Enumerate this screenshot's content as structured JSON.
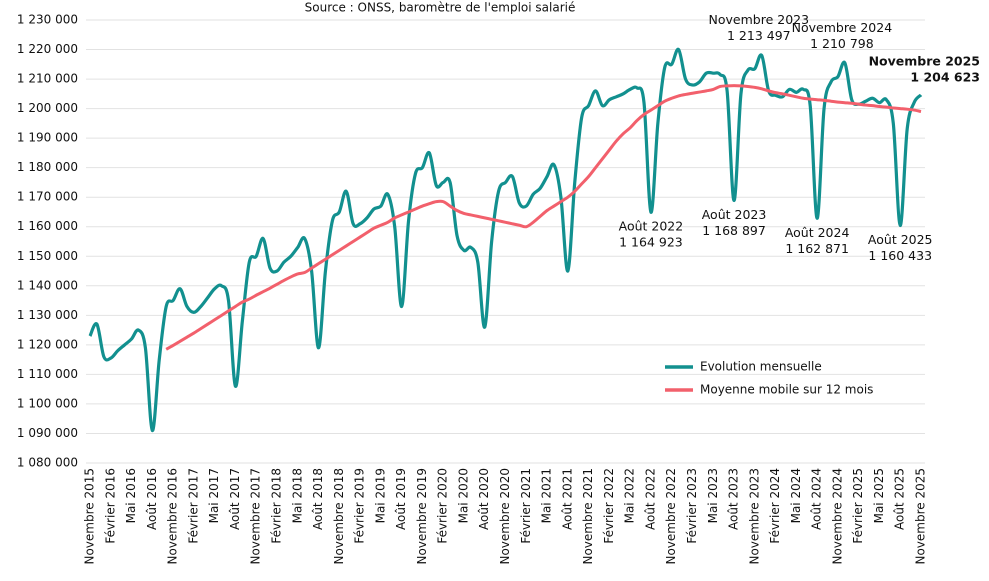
{
  "chart_data": {
    "type": "line",
    "subtitle": "Source : ONSS, baromètre de l'emploi salarié",
    "categories": [
      "Novembre 2015",
      null,
      null,
      "Février 2016",
      null,
      null,
      "Mai 2016",
      null,
      null,
      "Août 2016",
      null,
      null,
      "Novembre 2016",
      null,
      null,
      "Février 2017",
      null,
      null,
      "Mai 2017",
      null,
      null,
      "Août 2017",
      null,
      null,
      "Novembre 2017",
      null,
      null,
      "Février 2018",
      null,
      null,
      "Mai 2018",
      null,
      null,
      "Août 2018",
      null,
      null,
      "Novembre 2018",
      null,
      null,
      "Février 2019",
      null,
      null,
      "Mai 2019",
      null,
      null,
      "Août 2019",
      null,
      null,
      "Novembre 2019",
      null,
      null,
      "Février 2020",
      null,
      null,
      "Mai 2020",
      null,
      null,
      "Août 2020",
      null,
      null,
      "Novembre 2020",
      null,
      null,
      "Février 2021",
      null,
      null,
      "Mai 2021",
      null,
      null,
      "Août 2021",
      null,
      null,
      "Novembre 2021",
      null,
      null,
      "Février 2022",
      null,
      null,
      "Mai 2022",
      null,
      null,
      "Août 2022",
      null,
      null,
      "Novembre 2022",
      null,
      null,
      "Février 2023",
      null,
      null,
      "Mai 2023",
      null,
      null,
      "Août 2023",
      null,
      null,
      "Novembre 2023",
      null,
      null,
      "Février 2024",
      null,
      null,
      "Mai 2024",
      null,
      null,
      "Août 2024",
      null,
      null,
      "Novembre 2024",
      null,
      null,
      "Février 2025",
      null,
      null,
      "Mai 2025",
      null,
      null,
      "Août 2025",
      null,
      null,
      "Novembre 2025"
    ],
    "series": [
      {
        "name": "Evolution mensuelle",
        "color": "#12908f",
        "values": [
          1123000,
          1127000,
          1116000,
          1115500,
          1118000,
          1120000,
          1122000,
          1125000,
          1119000,
          1091000,
          1115000,
          1133000,
          1135000,
          1139000,
          1133000,
          1131000,
          1133000,
          1136000,
          1139000,
          1140000,
          1135000,
          1106000,
          1128000,
          1148000,
          1150000,
          1156000,
          1146000,
          1145000,
          1148000,
          1150000,
          1153000,
          1156000,
          1145000,
          1119000,
          1145000,
          1162000,
          1165000,
          1172000,
          1161000,
          1161000,
          1163000,
          1166000,
          1167000,
          1171000,
          1160000,
          1133000,
          1162000,
          1178000,
          1180000,
          1185000,
          1174000,
          1175000,
          1175000,
          1157000,
          1152000,
          1153000,
          1148000,
          1126000,
          1155000,
          1172000,
          1175000,
          1177000,
          1168000,
          1167000,
          1171000,
          1173000,
          1177000,
          1181000,
          1170000,
          1145000,
          1175000,
          1197000,
          1201000,
          1206000,
          1201000,
          1203000,
          1204000,
          1205000,
          1206500,
          1207000,
          1202000,
          1164923,
          1195000,
          1214000,
          1215000,
          1220000,
          1210000,
          1208000,
          1209000,
          1212000,
          1212000,
          1211500,
          1206000,
          1168897,
          1205000,
          1213000,
          1213497,
          1218000,
          1206000,
          1204500,
          1204000,
          1206500,
          1205500,
          1206500,
          1201000,
          1162871,
          1200000,
          1209000,
          1210798,
          1215500,
          1203000,
          1201500,
          1202500,
          1203500,
          1202000,
          1203000,
          1195000,
          1160433,
          1193000,
          1202000,
          1204623
        ],
        "point_labels": [
          null,
          null,
          null,
          null,
          null,
          null,
          null,
          null,
          null,
          null,
          null,
          null,
          null,
          null,
          null,
          null,
          null,
          null,
          null,
          null,
          null,
          null,
          null,
          null,
          null,
          null,
          null,
          null,
          null,
          null,
          null,
          null,
          null,
          null,
          null,
          null,
          null,
          null,
          null,
          null,
          null,
          null,
          null,
          null,
          null,
          null,
          null,
          null,
          null,
          null,
          null,
          null,
          null,
          null,
          null,
          null,
          null,
          null,
          null,
          null,
          null,
          null,
          null,
          null,
          null,
          null,
          null,
          null,
          null,
          null,
          null,
          null,
          null,
          null,
          null,
          null,
          null,
          null,
          null,
          null,
          null,
          "Août 2022",
          null,
          null,
          null,
          null,
          null,
          null,
          null,
          null,
          null,
          null,
          null,
          "Août 2023",
          null,
          null,
          "Novembre 2023",
          null,
          null,
          null,
          null,
          null,
          null,
          null,
          null,
          "Août 2024",
          null,
          null,
          "Novembre 2024",
          null,
          null,
          null,
          null,
          null,
          null,
          null,
          null,
          "Août 2025",
          null,
          null,
          "Novembre 2025"
        ],
        "value_labels": [
          null,
          null,
          null,
          null,
          null,
          null,
          null,
          null,
          null,
          null,
          null,
          null,
          null,
          null,
          null,
          null,
          null,
          null,
          null,
          null,
          null,
          null,
          null,
          null,
          null,
          null,
          null,
          null,
          null,
          null,
          null,
          null,
          null,
          null,
          null,
          null,
          null,
          null,
          null,
          null,
          null,
          null,
          null,
          null,
          null,
          null,
          null,
          null,
          null,
          null,
          null,
          null,
          null,
          null,
          null,
          null,
          null,
          null,
          null,
          null,
          null,
          null,
          null,
          null,
          null,
          null,
          null,
          null,
          null,
          null,
          null,
          null,
          null,
          null,
          null,
          null,
          null,
          null,
          null,
          null,
          null,
          "1 164 923",
          null,
          null,
          null,
          null,
          null,
          null,
          null,
          null,
          null,
          null,
          null,
          "1 168 897",
          null,
          null,
          "1 213 497",
          null,
          null,
          null,
          null,
          null,
          null,
          null,
          null,
          "1 162 871",
          null,
          null,
          "1 210 798",
          null,
          null,
          null,
          null,
          null,
          null,
          null,
          null,
          "1 160 433",
          null,
          null,
          "1 204 623"
        ]
      },
      {
        "name": "Moyenne mobile sur 12 mois",
        "color": "#f2606c",
        "values": [
          null,
          null,
          null,
          null,
          null,
          null,
          null,
          null,
          null,
          null,
          null,
          1118500,
          1119800,
          1121200,
          1122600,
          1124000,
          1125500,
          1127000,
          1128500,
          1130000,
          1131500,
          1133000,
          1134500,
          1135500,
          1136800,
          1138000,
          1139200,
          1140500,
          1141800,
          1143000,
          1144000,
          1144500,
          1146000,
          1147500,
          1149000,
          1150500,
          1152000,
          1153500,
          1155000,
          1156500,
          1158000,
          1159500,
          1160500,
          1161500,
          1163000,
          1164000,
          1165000,
          1166000,
          1167000,
          1167800,
          1168500,
          1168500,
          1167000,
          1165500,
          1164500,
          1164000,
          1163500,
          1163000,
          1162500,
          1162000,
          1161500,
          1161000,
          1160500,
          1160000,
          1161500,
          1163500,
          1165500,
          1167000,
          1168500,
          1170000,
          1172000,
          1174500,
          1177000,
          1180000,
          1183000,
          1186000,
          1189000,
          1191500,
          1193500,
          1196000,
          1198000,
          1199500,
          1201000,
          1202500,
          1203500,
          1204300,
          1204800,
          1205200,
          1205600,
          1206000,
          1206500,
          1207500,
          1207700,
          1207800,
          1207700,
          1207500,
          1207200,
          1206700,
          1206000,
          1205400,
          1205000,
          1204500,
          1204000,
          1203500,
          1203200,
          1203000,
          1202800,
          1202500,
          1202200,
          1202000,
          1201800,
          1201500,
          1201200,
          1201000,
          1200700,
          1200500,
          1200200,
          1200000,
          1199800,
          1199500,
          1199000
        ]
      }
    ],
    "ylim": [
      1080000,
      1230000
    ],
    "yticks": [
      {
        "value": 1080000,
        "label": "1 080 000"
      },
      {
        "value": 1090000,
        "label": "1 090 000"
      },
      {
        "value": 1100000,
        "label": "1 100 000"
      },
      {
        "value": 1110000,
        "label": "1 110 000"
      },
      {
        "value": 1120000,
        "label": "1 120 000"
      },
      {
        "value": 1130000,
        "label": "1 130 000"
      },
      {
        "value": 1140000,
        "label": "1 140 000"
      },
      {
        "value": 1150000,
        "label": "1 150 000"
      },
      {
        "value": 1160000,
        "label": "1 160 000"
      },
      {
        "value": 1170000,
        "label": "1 170 000"
      },
      {
        "value": 1180000,
        "label": "1 180 000"
      },
      {
        "value": 1190000,
        "label": "1 190 000"
      },
      {
        "value": 1200000,
        "label": "1 200 000"
      },
      {
        "value": 1210000,
        "label": "1 210 000"
      },
      {
        "value": 1220000,
        "label": "1 220 000"
      },
      {
        "value": 1230000,
        "label": "1 230 000"
      }
    ],
    "grid": true,
    "legend": "lower right"
  }
}
